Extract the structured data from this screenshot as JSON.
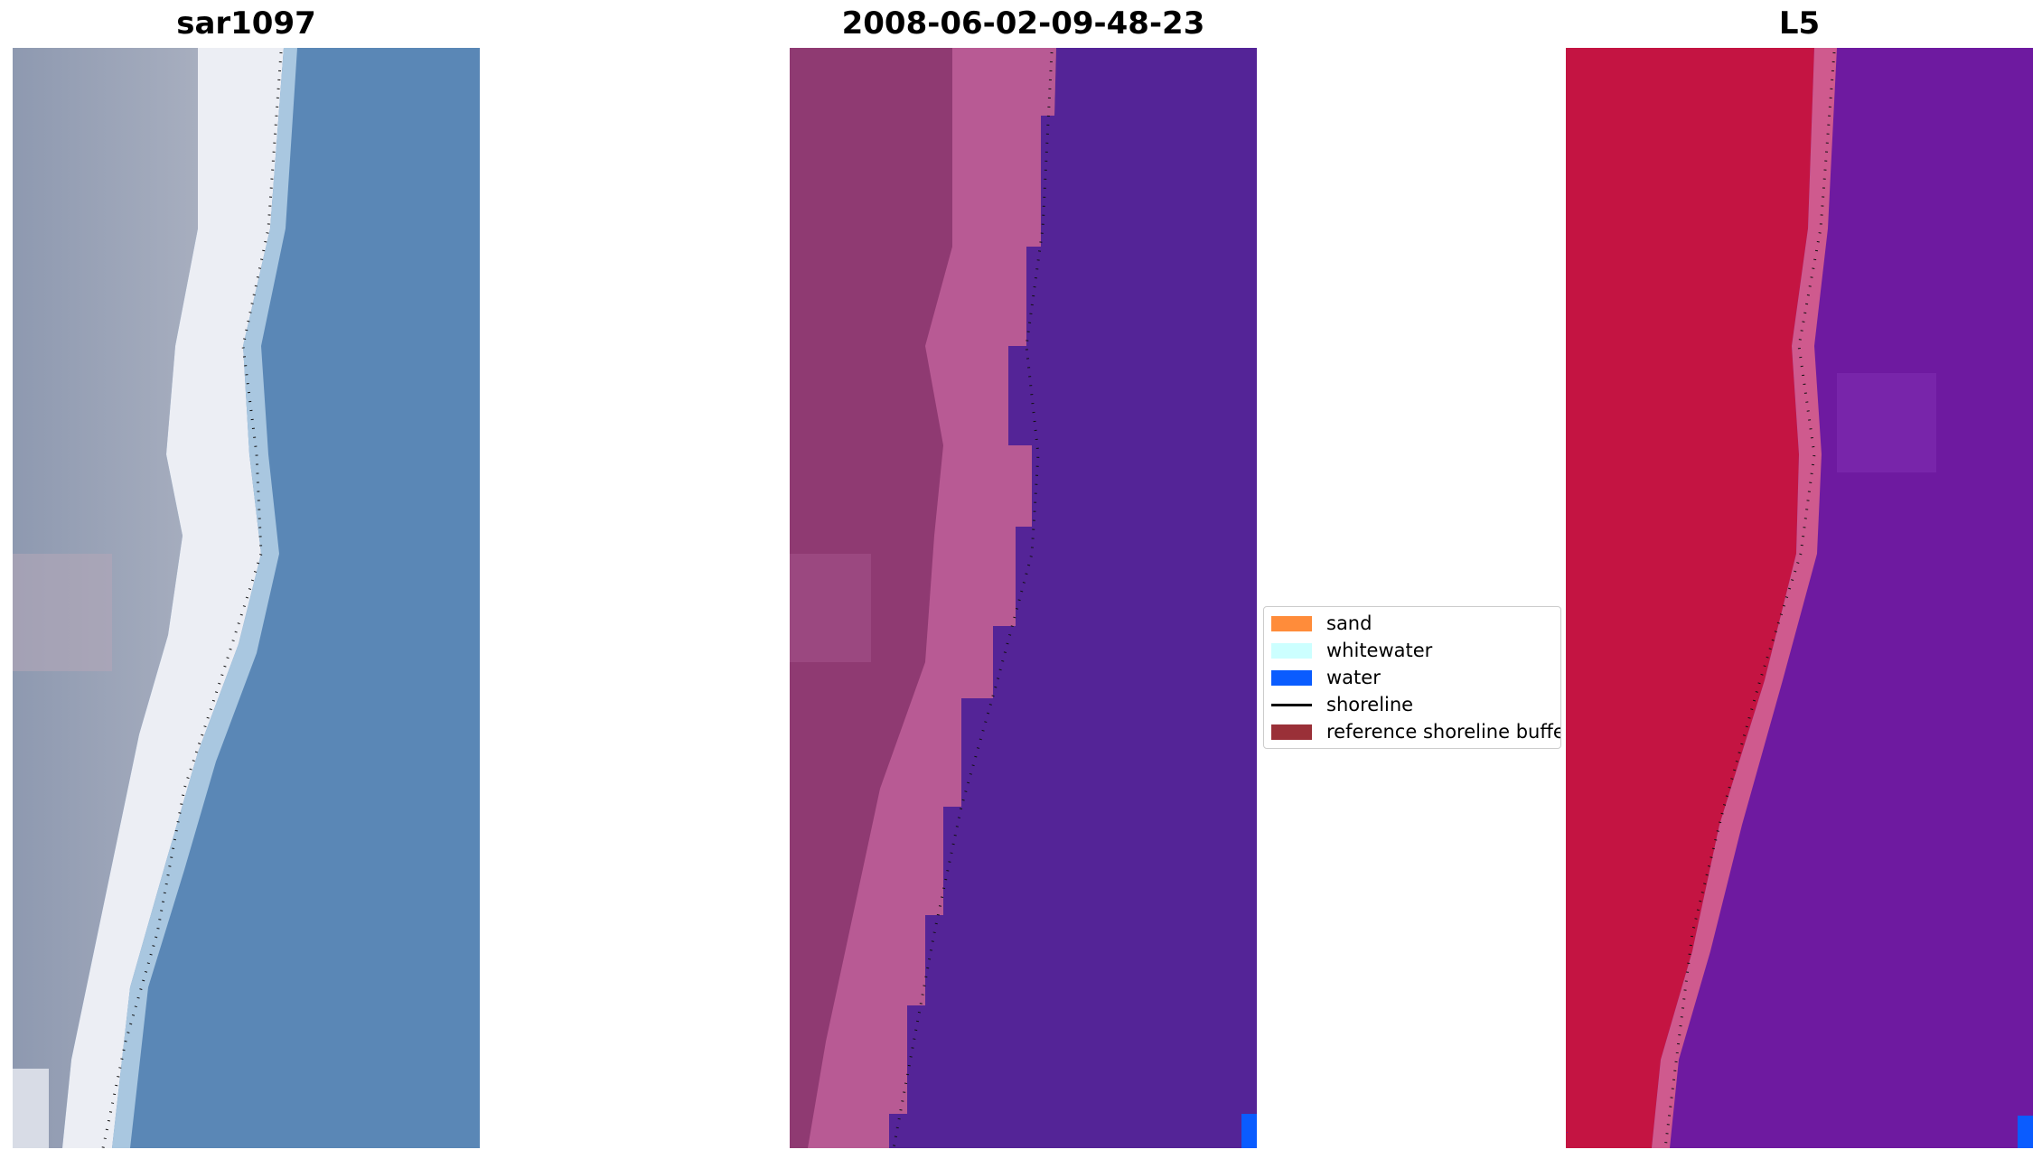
{
  "panels": [
    {
      "title": "sar1097"
    },
    {
      "title": "2008-06-02-09-48-23"
    },
    {
      "title": "L5"
    }
  ],
  "legend": [
    {
      "label": "sand",
      "color": "#ff8c3a",
      "kind": "patch"
    },
    {
      "label": "whitewater",
      "color": "#ccffff",
      "kind": "patch"
    },
    {
      "label": "water",
      "color": "#0a5cff",
      "kind": "patch"
    },
    {
      "label": "shoreline",
      "color": "#000000",
      "kind": "line"
    },
    {
      "label": "reference shoreline buffer",
      "color": "#9a3038",
      "kind": "patch"
    }
  ]
}
